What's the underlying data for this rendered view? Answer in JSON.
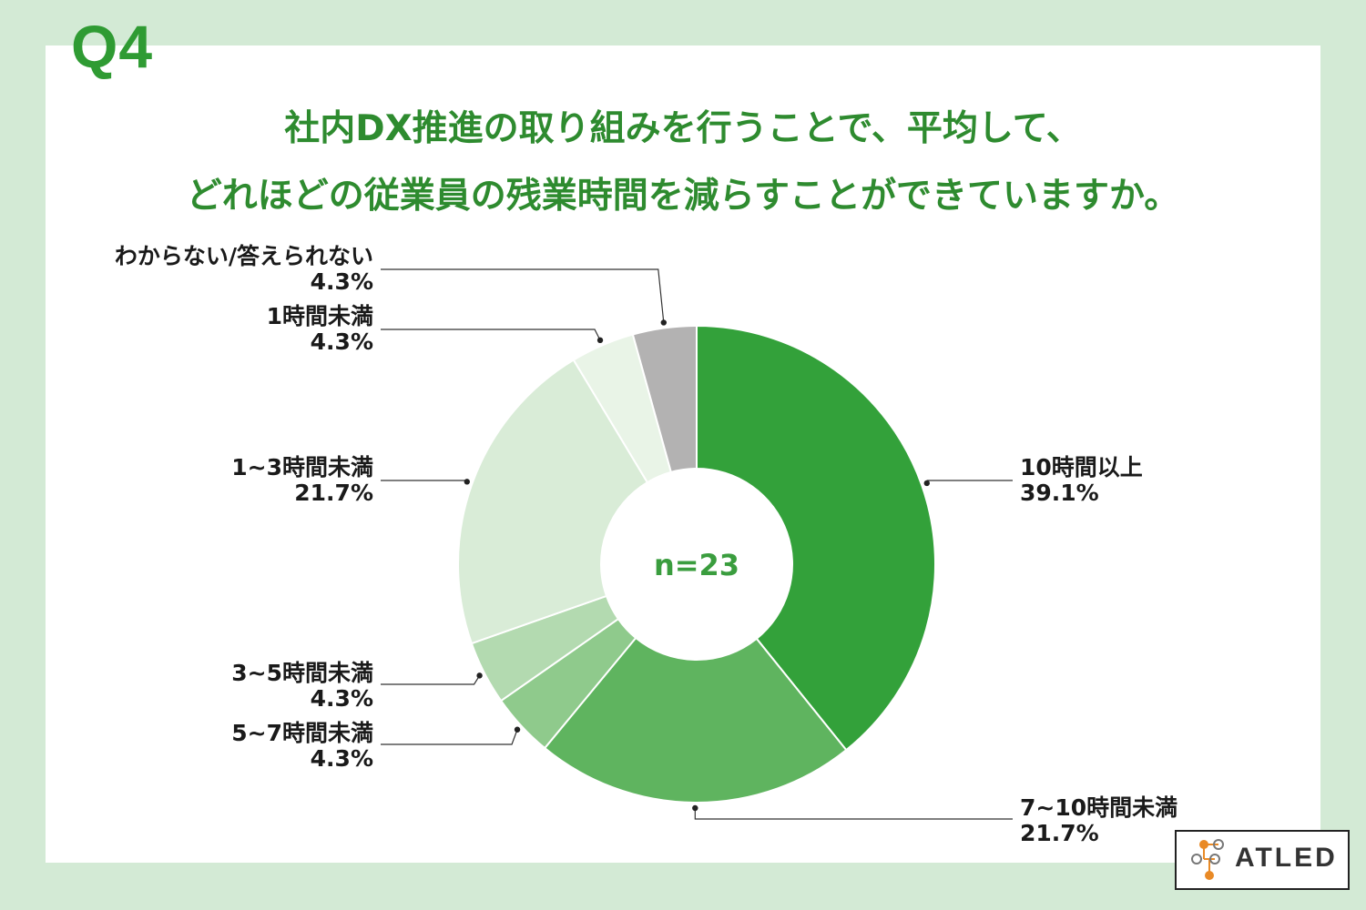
{
  "header": {
    "question": "Q4",
    "title_line1": "社内DX推進の取り組みを行うことで、平均して、",
    "title_line2": "どれほどの従業員の残業時間を減らすことができていますか。"
  },
  "chart_data": {
    "type": "pie",
    "donut": true,
    "center_label": "n=23",
    "slices": [
      {
        "label": "10時間以上",
        "value": 39.1,
        "value_label": "39.1%",
        "color": "#33a13a"
      },
      {
        "label": "7~10時間未満",
        "value": 21.7,
        "value_label": "21.7%",
        "color": "#5fb45f"
      },
      {
        "label": "5~7時間未満",
        "value": 4.3,
        "value_label": "4.3%",
        "color": "#8fca8c"
      },
      {
        "label": "3~5時間未満",
        "value": 4.3,
        "value_label": "4.3%",
        "color": "#b3dab0"
      },
      {
        "label": "1~3時間未満",
        "value": 21.7,
        "value_label": "21.7%",
        "color": "#d9ecd7"
      },
      {
        "label": "1時間未満",
        "value": 4.3,
        "value_label": "4.3%",
        "color": "#e9f4e7"
      },
      {
        "label": "わからない/答えられない",
        "value": 4.3,
        "value_label": "4.3%",
        "color": "#b3b2b2"
      }
    ]
  },
  "logo": {
    "text": "ATLED",
    "dot_color": "#e98a26"
  }
}
